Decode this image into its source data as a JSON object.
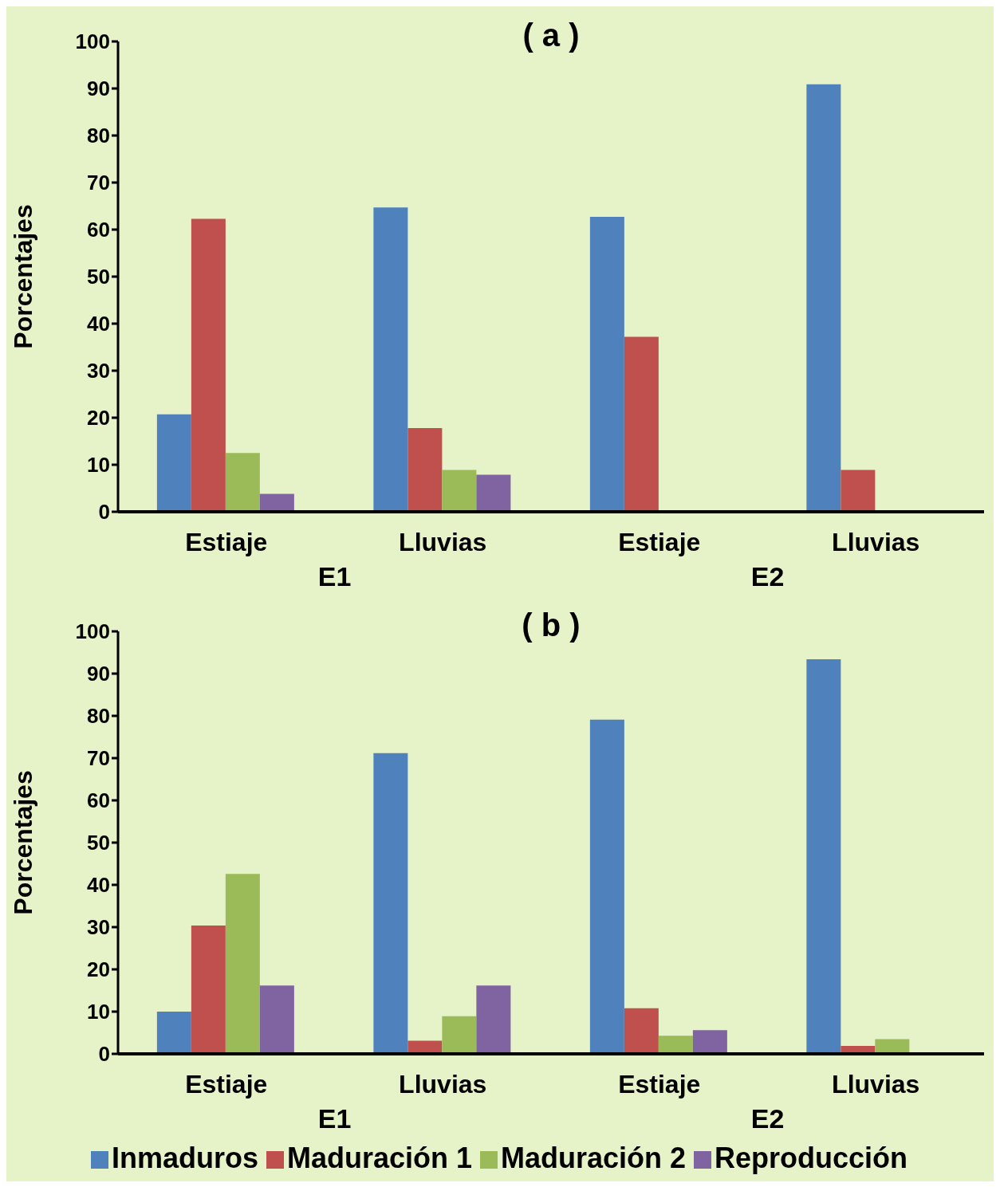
{
  "chart_data": [
    {
      "type": "bar",
      "title": "( a )",
      "ylabel": "Porcentajes",
      "categories": [
        "Estiaje",
        "Lluvias",
        "Estiaje",
        "Lluvias"
      ],
      "annotations": [
        "E1",
        "E2"
      ],
      "ylim": [
        0,
        100
      ],
      "yticks": [
        0,
        10,
        20,
        30,
        40,
        50,
        60,
        70,
        80,
        90,
        100
      ],
      "grid": false,
      "legend": false,
      "series": [
        {
          "color": "#4f81bd",
          "values": [
            20.7,
            64.7,
            62.7,
            90.9
          ]
        },
        {
          "color": "#c0504d",
          "values": [
            62.3,
            17.8,
            37.2,
            8.9
          ]
        },
        {
          "color": "#9bbb59",
          "values": [
            12.5,
            8.9,
            0,
            0
          ]
        },
        {
          "color": "#8064a2",
          "values": [
            3.8,
            7.9,
            0,
            0
          ]
        }
      ]
    },
    {
      "type": "bar",
      "title": "( b )",
      "ylabel": "Porcentajes",
      "categories": [
        "Estiaje",
        "Lluvias",
        "Estiaje",
        "Lluvias"
      ],
      "annotations": [
        "E1",
        "E2"
      ],
      "ylim": [
        0,
        100
      ],
      "yticks": [
        0,
        10,
        20,
        30,
        40,
        50,
        60,
        70,
        80,
        90,
        100
      ],
      "grid": false,
      "legend": "bottom",
      "series": [
        {
          "name": "Inmaduros",
          "color": "#4f81bd",
          "values": [
            10,
            71.2,
            79.1,
            93.4
          ]
        },
        {
          "name": "Maduración 1",
          "color": "#c0504d",
          "values": [
            30.4,
            3.1,
            10.8,
            1.9
          ]
        },
        {
          "name": "Maduración 2",
          "color": "#9bbb59",
          "values": [
            42.6,
            8.9,
            4.3,
            3.5
          ]
        },
        {
          "name": "Reproducción",
          "color": "#8064a2",
          "values": [
            16.2,
            16.2,
            5.6,
            0
          ]
        }
      ]
    }
  ]
}
